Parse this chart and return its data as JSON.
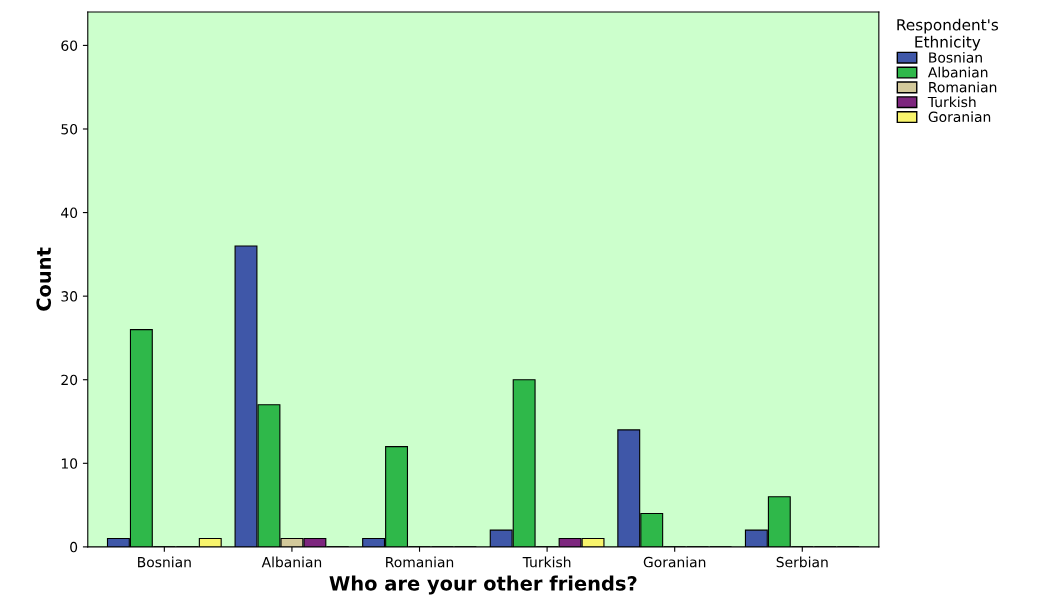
{
  "chart_data": {
    "type": "bar",
    "xlabel": "Who are your other friends?",
    "ylabel": "Count",
    "legend_title": "Respondent's\nEthnicity",
    "categories": [
      "Bosnian",
      "Albanian",
      "Romanian",
      "Turkish",
      "Goranian",
      "Serbian"
    ],
    "series": [
      {
        "name": "Bosnian",
        "color": "#3f57a8",
        "values": [
          1,
          36,
          1,
          2,
          14,
          2
        ]
      },
      {
        "name": "Albanian",
        "color": "#2fb84a",
        "values": [
          26,
          17,
          12,
          20,
          4,
          6
        ]
      },
      {
        "name": "Romanian",
        "color": "#d3c99b",
        "values": [
          0,
          1,
          0,
          0,
          0,
          0
        ]
      },
      {
        "name": "Turkish",
        "color": "#7d267e",
        "values": [
          0,
          1,
          0,
          1,
          0,
          0
        ]
      },
      {
        "name": "Goranian",
        "color": "#f8f46c",
        "values": [
          1,
          0,
          0,
          1,
          0,
          0
        ]
      }
    ],
    "ylim": [
      0,
      64
    ],
    "yticks": [
      0,
      10,
      20,
      30,
      40,
      50,
      60
    ],
    "grid": false,
    "legend": "top right"
  }
}
